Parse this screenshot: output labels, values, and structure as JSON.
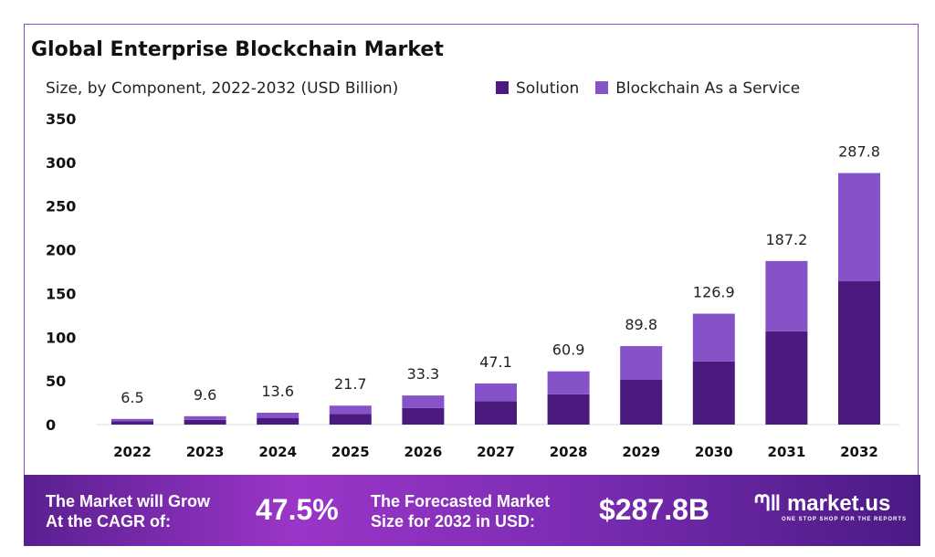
{
  "chart_data": {
    "type": "bar",
    "stacked": true,
    "title": "Global Enterprise Blockchain Market",
    "subtitle": "Size, by Component, 2022-2032 (USD Billion)",
    "categories": [
      "2022",
      "2023",
      "2024",
      "2025",
      "2026",
      "2027",
      "2028",
      "2029",
      "2030",
      "2031",
      "2032"
    ],
    "totals": [
      6.5,
      9.6,
      13.6,
      21.7,
      33.3,
      47.1,
      60.9,
      89.8,
      126.9,
      187.2,
      287.8
    ],
    "series": [
      {
        "name": "Solution",
        "color": "#4a1a7e",
        "values": [
          3.7,
          5.5,
          7.7,
          12.3,
          19.0,
          26.8,
          34.7,
          51.2,
          72.3,
          106.7,
          164.0
        ]
      },
      {
        "name": "Blockchain As a Service",
        "color": "#8652c8",
        "values": [
          2.8,
          4.1,
          5.9,
          9.4,
          14.3,
          20.3,
          26.2,
          38.6,
          54.6,
          80.5,
          123.8
        ]
      }
    ],
    "ylim": [
      0,
      350
    ],
    "yticks": [
      0,
      50,
      100,
      150,
      200,
      250,
      300,
      350
    ],
    "grid": false,
    "legend_position": "top-right"
  },
  "banner": {
    "cagr_label_1": "The Market will Grow",
    "cagr_label_2": "At the CAGR of:",
    "cagr_value": "47.5%",
    "forecast_label_1": "The Forecasted Market",
    "forecast_label_2": "Size for 2032 in USD:",
    "forecast_value": "$287.8B",
    "logo_text": "market.us",
    "logo_tagline": "ONE STOP SHOP FOR THE REPORTS"
  }
}
